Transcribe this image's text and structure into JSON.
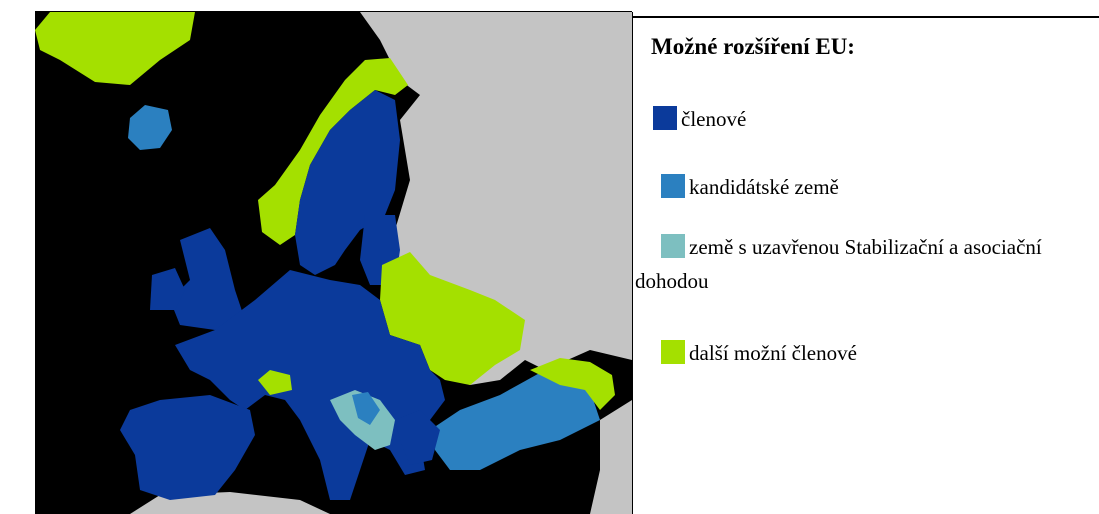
{
  "legend": {
    "title": "Možné rozšíření EU:",
    "items": [
      {
        "label": "členové",
        "color": "#0b3a9b"
      },
      {
        "label": "kandidátské země",
        "color": "#2b80c0"
      },
      {
        "label": "země s uzavřenou Stabilizační a asociační dohodou",
        "color": "#7dbfc0"
      },
      {
        "label": "další možní členové",
        "color": "#a4e000"
      }
    ]
  }
}
